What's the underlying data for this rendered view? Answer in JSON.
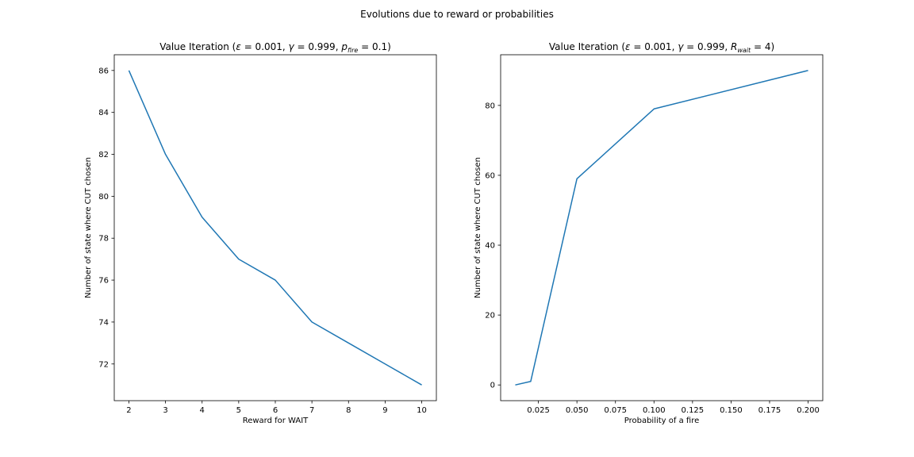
{
  "figure": {
    "suptitle": "Evolutions due to reward or probabilities"
  },
  "colors": {
    "line": "#1f77b4",
    "axis": "#000000"
  },
  "chart_data": [
    {
      "type": "line",
      "title": "Value Iteration (ε = 0.001,  γ = 0.999,  p_fire = 0.1)",
      "title_parts": [
        "Value Iteration (",
        "ε",
        " = 0.001,  ",
        "γ",
        " = 0.999,  ",
        "p",
        "fire",
        " = 0.1)"
      ],
      "xlabel": "Reward for WAIT",
      "ylabel": "Number of state where CUT chosen",
      "x": [
        2,
        3,
        4,
        5,
        6,
        7,
        8,
        9,
        10
      ],
      "series": [
        {
          "values": [
            86,
            82,
            79,
            77,
            76,
            74,
            73,
            72,
            71
          ]
        }
      ],
      "xlim": [
        1.6,
        10.4
      ],
      "ylim": [
        70.25,
        86.75
      ],
      "xticks": [
        2,
        3,
        4,
        5,
        6,
        7,
        8,
        9,
        10
      ],
      "xtick_labels": [
        "2",
        "3",
        "4",
        "5",
        "6",
        "7",
        "8",
        "9",
        "10"
      ],
      "yticks": [
        72,
        74,
        76,
        78,
        80,
        82,
        84,
        86
      ],
      "ytick_labels": [
        "72",
        "74",
        "76",
        "78",
        "80",
        "82",
        "84",
        "86"
      ],
      "grid": false
    },
    {
      "type": "line",
      "title": "Value Iteration (ε = 0.001,  γ = 0.999,  R_wait = 4)",
      "title_parts": [
        "Value Iteration (",
        "ε",
        " = 0.001,  ",
        "γ",
        " = 0.999,  ",
        "R",
        "wait",
        " = 4)"
      ],
      "xlabel": "Probability of a fire",
      "ylabel": "Number of state where CUT chosen",
      "x": [
        0.01,
        0.02,
        0.05,
        0.1,
        0.2
      ],
      "series": [
        {
          "values": [
            0,
            1,
            59,
            79,
            90
          ]
        }
      ],
      "xlim": [
        0.0005,
        0.2095
      ],
      "ylim": [
        -4.5,
        94.5
      ],
      "xticks": [
        0.025,
        0.05,
        0.075,
        0.1,
        0.125,
        0.15,
        0.175,
        0.2
      ],
      "xtick_labels": [
        "0.025",
        "0.050",
        "0.075",
        "0.100",
        "0.125",
        "0.150",
        "0.175",
        "0.200"
      ],
      "yticks": [
        0,
        20,
        40,
        60,
        80
      ],
      "ytick_labels": [
        "0",
        "20",
        "40",
        "60",
        "80"
      ],
      "grid": false
    }
  ]
}
